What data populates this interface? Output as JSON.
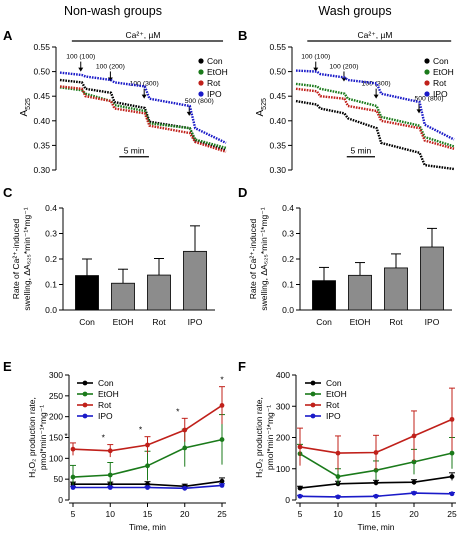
{
  "colors": {
    "Con": "#000000",
    "EtOH": "#1a7a1a",
    "Rot": "#c0201a",
    "IPO": "#1a1ac8",
    "bar_Con": "#000000",
    "bar_other": "#8c8c8c"
  },
  "titles": {
    "left": "Non-wash groups",
    "right": "Wash groups"
  },
  "panel_letters": [
    "A",
    "B",
    "C",
    "D",
    "E",
    "F"
  ],
  "chart_data": [
    {
      "panel": "A",
      "type": "scatter",
      "title": "Non-wash groups",
      "ylabel_main": "A",
      "ylabel_sub": "525",
      "ylim": [
        0.3,
        0.55
      ],
      "yticks": [
        "0.30",
        "0.35",
        "0.40",
        "0.45",
        "0.50",
        "0.55"
      ],
      "xlim": [
        0,
        28
      ],
      "stimulus_label": "Ca²⁺, µM",
      "scale_label": "5 min",
      "scale_minutes": 5,
      "additions": [
        {
          "label": "100 (100)",
          "time": 3.5,
          "arrow_y": 0.5
        },
        {
          "label": "100 (200)",
          "time": 8.5,
          "arrow_y": 0.48
        },
        {
          "label": "100 (300)",
          "time": 14.2,
          "arrow_y": 0.445
        },
        {
          "label": "500 (800)",
          "time": 21.8,
          "arrow_y": 0.41
        }
      ],
      "legend": [
        "Con",
        "EtOH",
        "Rot",
        "IPO"
      ],
      "series": [
        {
          "name": "Con",
          "points": [
            [
              0,
              0.483
            ],
            [
              3.7,
              0.478
            ],
            [
              4.3,
              0.465
            ],
            [
              8.6,
              0.457
            ],
            [
              9.2,
              0.438
            ],
            [
              14.3,
              0.426
            ],
            [
              15.1,
              0.398
            ],
            [
              21.9,
              0.385
            ],
            [
              22.8,
              0.36
            ],
            [
              28,
              0.34
            ]
          ]
        },
        {
          "name": "EtOH",
          "points": [
            [
              0,
              0.468
            ],
            [
              3.7,
              0.462
            ],
            [
              4.3,
              0.455
            ],
            [
              8.6,
              0.44
            ],
            [
              9.2,
              0.432
            ],
            [
              14.3,
              0.42
            ],
            [
              15.1,
              0.395
            ],
            [
              21.9,
              0.385
            ],
            [
              22.8,
              0.362
            ],
            [
              28,
              0.345
            ]
          ]
        },
        {
          "name": "Rot",
          "points": [
            [
              0,
              0.47
            ],
            [
              3.7,
              0.465
            ],
            [
              4.3,
              0.45
            ],
            [
              8.6,
              0.44
            ],
            [
              9.2,
              0.425
            ],
            [
              14.3,
              0.415
            ],
            [
              15.1,
              0.39
            ],
            [
              21.9,
              0.375
            ],
            [
              22.8,
              0.357
            ],
            [
              28,
              0.337
            ]
          ]
        },
        {
          "name": "IPO",
          "points": [
            [
              0,
              0.498
            ],
            [
              3.7,
              0.493
            ],
            [
              4.3,
              0.49
            ],
            [
              8.6,
              0.483
            ],
            [
              9.2,
              0.478
            ],
            [
              14.3,
              0.47
            ],
            [
              15.1,
              0.445
            ],
            [
              21.9,
              0.43
            ],
            [
              22.8,
              0.385
            ],
            [
              28,
              0.355
            ]
          ]
        }
      ]
    },
    {
      "panel": "B",
      "type": "scatter",
      "title": "Wash groups",
      "ylabel_main": "A",
      "ylabel_sub": "525",
      "ylim": [
        0.3,
        0.55
      ],
      "yticks": [
        "0.30",
        "0.35",
        "0.40",
        "0.45",
        "0.50",
        "0.55"
      ],
      "xlim": [
        0,
        28
      ],
      "stimulus_label": "Ca²⁺, µM",
      "scale_label": "5 min",
      "scale_minutes": 5,
      "additions": [
        {
          "label": "100 (100)",
          "time": 3.5,
          "arrow_y": 0.5
        },
        {
          "label": "100 (200)",
          "time": 8.5,
          "arrow_y": 0.48
        },
        {
          "label": "100 (300)",
          "time": 14.2,
          "arrow_y": 0.445
        },
        {
          "label": "500 (800)",
          "time": 21.8,
          "arrow_y": 0.415
        }
      ],
      "legend": [
        "Con",
        "EtOH",
        "Rot",
        "IPO"
      ],
      "series": [
        {
          "name": "Con",
          "points": [
            [
              0,
              0.44
            ],
            [
              3.7,
              0.433
            ],
            [
              4.3,
              0.425
            ],
            [
              8.6,
              0.415
            ],
            [
              9.2,
              0.405
            ],
            [
              14.3,
              0.385
            ],
            [
              15.1,
              0.355
            ],
            [
              21.9,
              0.335
            ],
            [
              22.8,
              0.31
            ],
            [
              28,
              0.302
            ]
          ]
        },
        {
          "name": "EtOH",
          "points": [
            [
              0,
              0.475
            ],
            [
              3.7,
              0.47
            ],
            [
              4.3,
              0.465
            ],
            [
              8.6,
              0.455
            ],
            [
              9.2,
              0.445
            ],
            [
              14.3,
              0.43
            ],
            [
              15.1,
              0.408
            ],
            [
              21.9,
              0.39
            ],
            [
              22.8,
              0.367
            ],
            [
              28,
              0.348
            ]
          ]
        },
        {
          "name": "Rot",
          "points": [
            [
              0,
              0.465
            ],
            [
              3.7,
              0.46
            ],
            [
              4.3,
              0.45
            ],
            [
              8.6,
              0.445
            ],
            [
              9.2,
              0.43
            ],
            [
              14.3,
              0.42
            ],
            [
              15.1,
              0.4
            ],
            [
              21.9,
              0.385
            ],
            [
              22.8,
              0.36
            ],
            [
              28,
              0.343
            ]
          ]
        },
        {
          "name": "IPO",
          "points": [
            [
              0,
              0.502
            ],
            [
              3.7,
              0.5
            ],
            [
              4.3,
              0.495
            ],
            [
              8.6,
              0.488
            ],
            [
              9.2,
              0.483
            ],
            [
              14.3,
              0.476
            ],
            [
              15.1,
              0.455
            ],
            [
              21.9,
              0.438
            ],
            [
              22.8,
              0.392
            ],
            [
              28,
              0.362
            ]
          ]
        }
      ]
    },
    {
      "panel": "C",
      "type": "bar",
      "ylabel_lines": [
        "Rate of Ca²⁺-induced",
        "swelling, ΔA₅₂₅*min⁻¹*mg⁻¹"
      ],
      "ylim": [
        0,
        0.4
      ],
      "yticks": [
        "0.0",
        "0.1",
        "0.2",
        "0.3",
        "0.4"
      ],
      "categories": [
        "Con",
        "EtOH",
        "Rot",
        "IPO"
      ],
      "values": [
        0.135,
        0.105,
        0.137,
        0.23
      ],
      "errors": [
        0.065,
        0.055,
        0.065,
        0.1
      ]
    },
    {
      "panel": "D",
      "type": "bar",
      "ylabel_lines": [
        "Rate of Ca²⁺-induced",
        "swelling, ΔA₅₂₅*min⁻¹*mg⁻¹"
      ],
      "ylim": [
        0,
        0.4
      ],
      "yticks": [
        "0.0",
        "0.1",
        "0.2",
        "0.3",
        "0.4"
      ],
      "categories": [
        "Con",
        "EtOH",
        "Rot",
        "IPO"
      ],
      "values": [
        0.115,
        0.136,
        0.165,
        0.247
      ],
      "errors": [
        0.052,
        0.05,
        0.055,
        0.073
      ]
    },
    {
      "panel": "E",
      "type": "line",
      "xlabel": "Time, min",
      "ylabel_lines": [
        "H₂O₂ production rate,",
        "pmol*min⁻¹*mg⁻¹"
      ],
      "xlim": [
        5,
        25
      ],
      "ylim": [
        0,
        300
      ],
      "xticks": [
        "5",
        "10",
        "15",
        "20",
        "25"
      ],
      "yticks": [
        "0",
        "50",
        "100",
        "150",
        "200",
        "250",
        "300"
      ],
      "x": [
        5,
        10,
        15,
        20,
        25
      ],
      "significance": [
        "*",
        "*",
        "*",
        "*",
        "*"
      ],
      "legend": [
        "Con",
        "EtOH",
        "Rot",
        "IPO"
      ],
      "series": [
        {
          "name": "Con",
          "values": [
            38,
            38,
            38,
            33,
            45
          ],
          "errors": [
            5,
            5,
            6,
            5,
            8
          ]
        },
        {
          "name": "EtOH",
          "values": [
            55,
            60,
            82,
            125,
            145
          ],
          "errors": [
            28,
            30,
            35,
            45,
            60
          ]
        },
        {
          "name": "Rot",
          "values": [
            122,
            118,
            132,
            168,
            227
          ],
          "errors": [
            15,
            15,
            20,
            28,
            45
          ]
        },
        {
          "name": "IPO",
          "values": [
            30,
            30,
            30,
            28,
            35
          ],
          "errors": [
            3,
            3,
            3,
            3,
            4
          ]
        }
      ]
    },
    {
      "panel": "F",
      "type": "line",
      "xlabel": "Time, min",
      "ylabel_lines": [
        "H₂O₂ production rate,",
        "pmol*min⁻¹*mg⁻¹"
      ],
      "xlim": [
        5,
        25
      ],
      "ylim": [
        0,
        400
      ],
      "xticks": [
        "5",
        "10",
        "15",
        "20",
        "25"
      ],
      "yticks": [
        "0",
        "100",
        "200",
        "300",
        "400"
      ],
      "x": [
        5,
        10,
        15,
        20,
        25
      ],
      "legend": [
        "Con",
        "EtOH",
        "Rot",
        "IPO"
      ],
      "series": [
        {
          "name": "Con",
          "values": [
            38,
            52,
            55,
            57,
            75
          ],
          "errors": [
            6,
            8,
            8,
            8,
            12
          ]
        },
        {
          "name": "EtOH",
          "values": [
            148,
            75,
            95,
            122,
            150
          ],
          "errors": [
            30,
            25,
            30,
            40,
            50
          ]
        },
        {
          "name": "Rot",
          "values": [
            170,
            150,
            152,
            205,
            258
          ],
          "errors": [
            60,
            55,
            55,
            80,
            100
          ]
        },
        {
          "name": "IPO",
          "values": [
            12,
            10,
            12,
            22,
            20
          ],
          "errors": [
            3,
            3,
            3,
            4,
            4
          ]
        }
      ]
    }
  ]
}
